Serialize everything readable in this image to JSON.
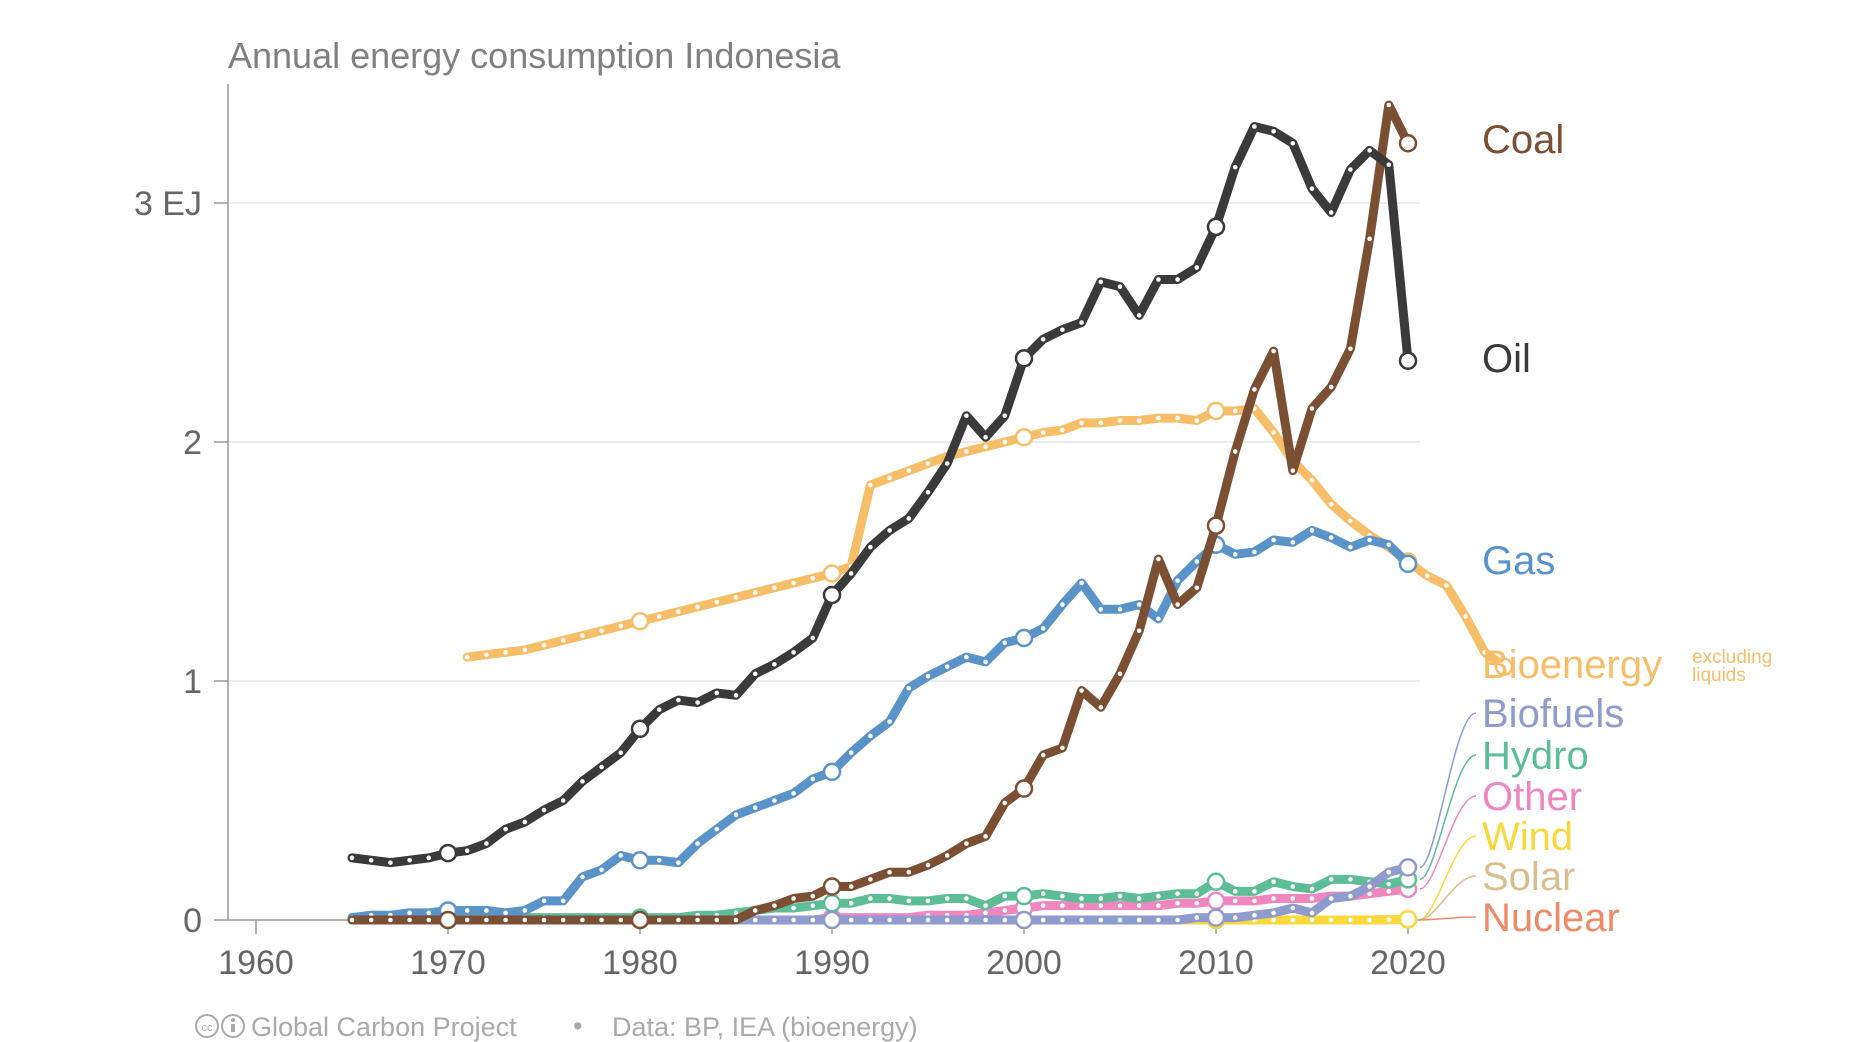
{
  "chart_data": {
    "type": "line",
    "title": "Annual energy consumption Indonesia",
    "unit": "EJ",
    "xlim": [
      1958,
      2022
    ],
    "ylim": [
      0,
      3.5
    ],
    "x_ticks": [
      "1960",
      "1970",
      "1980",
      "1990",
      "2000",
      "2010",
      "2020"
    ],
    "y_ticks": [
      {
        "value": 0,
        "label": "0"
      },
      {
        "value": 1,
        "label": "1"
      },
      {
        "value": 2,
        "label": "2"
      },
      {
        "value": 3,
        "label": "3 EJ"
      }
    ],
    "grid": true,
    "legend": "right-inline",
    "series": [
      {
        "name": "Bioenergy",
        "note": "excluding liquids",
        "color": "#F7BE6A",
        "start": 1971,
        "values": [
          1.1,
          1.11,
          1.12,
          1.13,
          1.15,
          1.17,
          1.19,
          1.21,
          1.23,
          1.25,
          1.27,
          1.29,
          1.31,
          1.33,
          1.35,
          1.37,
          1.39,
          1.41,
          1.43,
          1.45,
          1.48,
          1.82,
          1.85,
          1.88,
          1.91,
          1.94,
          1.96,
          1.98,
          2.0,
          2.02,
          2.04,
          2.05,
          2.08,
          2.08,
          2.09,
          2.09,
          2.1,
          2.1,
          2.09,
          2.13,
          2.13,
          2.14,
          2.04,
          1.92,
          1.84,
          1.74,
          1.67,
          1.61,
          1.56,
          1.5,
          1.44,
          1.4,
          1.27,
          1.12,
          1.06
        ]
      },
      {
        "name": "Oil",
        "color": "#3A3A3A",
        "start": 1965,
        "values": [
          0.26,
          0.25,
          0.24,
          0.25,
          0.26,
          0.28,
          0.29,
          0.32,
          0.38,
          0.41,
          0.46,
          0.5,
          0.58,
          0.64,
          0.7,
          0.8,
          0.88,
          0.92,
          0.91,
          0.95,
          0.94,
          1.03,
          1.07,
          1.12,
          1.18,
          1.36,
          1.45,
          1.56,
          1.63,
          1.68,
          1.79,
          1.91,
          2.11,
          2.02,
          2.11,
          2.35,
          2.43,
          2.47,
          2.5,
          2.67,
          2.65,
          2.53,
          2.68,
          2.68,
          2.73,
          2.9,
          3.15,
          3.32,
          3.3,
          3.25,
          3.06,
          2.96,
          3.14,
          3.22,
          3.16,
          2.34
        ]
      },
      {
        "name": "Coal",
        "color": "#7B4F34",
        "start": 1965,
        "values": [
          0,
          0,
          0,
          0,
          0,
          0,
          0,
          0,
          0,
          0,
          0,
          0,
          0,
          0,
          0,
          0,
          0,
          0,
          0,
          0,
          0,
          0.04,
          0.06,
          0.09,
          0.1,
          0.14,
          0.14,
          0.17,
          0.2,
          0.2,
          0.23,
          0.27,
          0.32,
          0.35,
          0.49,
          0.55,
          0.69,
          0.72,
          0.96,
          0.89,
          1.03,
          1.21,
          1.51,
          1.32,
          1.39,
          1.65,
          1.96,
          2.22,
          2.38,
          1.88,
          2.14,
          2.23,
          2.39,
          2.85,
          3.41,
          3.25
        ]
      },
      {
        "name": "Gas",
        "color": "#5A93C8",
        "start": 1965,
        "values": [
          0.01,
          0.02,
          0.02,
          0.03,
          0.03,
          0.04,
          0.04,
          0.04,
          0.03,
          0.04,
          0.08,
          0.08,
          0.18,
          0.21,
          0.27,
          0.25,
          0.25,
          0.24,
          0.32,
          0.38,
          0.44,
          0.47,
          0.5,
          0.53,
          0.59,
          0.62,
          0.7,
          0.77,
          0.83,
          0.97,
          1.02,
          1.06,
          1.1,
          1.08,
          1.16,
          1.18,
          1.22,
          1.32,
          1.41,
          1.3,
          1.3,
          1.32,
          1.26,
          1.42,
          1.5,
          1.57,
          1.53,
          1.54,
          1.59,
          1.58,
          1.63,
          1.6,
          1.56,
          1.59,
          1.57,
          1.49
        ]
      },
      {
        "name": "Biofuels",
        "color": "#8F9BCC",
        "start": 1965,
        "values": [
          0,
          0,
          0,
          0,
          0,
          0,
          0,
          0,
          0,
          0,
          0,
          0,
          0,
          0,
          0,
          0,
          0,
          0,
          0,
          0,
          0,
          0,
          0,
          0,
          0,
          0,
          0,
          0,
          0,
          0,
          0,
          0,
          0,
          0,
          0,
          0,
          0,
          0,
          0,
          0,
          0,
          0,
          0,
          0,
          0.01,
          0.01,
          0.01,
          0.02,
          0.03,
          0.05,
          0.03,
          0.09,
          0.1,
          0.14,
          0.2,
          0.22
        ]
      },
      {
        "name": "Hydro",
        "color": "#5DBD97",
        "start": 1965,
        "values": [
          0.01,
          0.01,
          0.01,
          0.01,
          0.01,
          0.01,
          0.01,
          0.01,
          0.01,
          0.01,
          0.01,
          0.01,
          0.01,
          0.01,
          0.01,
          0.01,
          0.01,
          0.01,
          0.02,
          0.02,
          0.03,
          0.04,
          0.05,
          0.05,
          0.06,
          0.07,
          0.07,
          0.09,
          0.09,
          0.08,
          0.08,
          0.09,
          0.09,
          0.06,
          0.1,
          0.1,
          0.11,
          0.1,
          0.09,
          0.09,
          0.1,
          0.09,
          0.1,
          0.11,
          0.11,
          0.16,
          0.12,
          0.12,
          0.16,
          0.14,
          0.13,
          0.17,
          0.17,
          0.16,
          0.15,
          0.17
        ]
      },
      {
        "name": "Other",
        "color": "#EE86C0",
        "start": 1965,
        "values": [
          0,
          0,
          0,
          0,
          0,
          0,
          0,
          0,
          0,
          0,
          0,
          0,
          0,
          0,
          0,
          0,
          0,
          0,
          0,
          0,
          0,
          0,
          0,
          0,
          0,
          0.01,
          0.01,
          0.01,
          0.01,
          0.01,
          0.02,
          0.02,
          0.02,
          0.03,
          0.04,
          0.05,
          0.06,
          0.06,
          0.06,
          0.06,
          0.06,
          0.06,
          0.06,
          0.07,
          0.07,
          0.08,
          0.08,
          0.08,
          0.09,
          0.09,
          0.09,
          0.1,
          0.1,
          0.11,
          0.12,
          0.13
        ]
      },
      {
        "name": "Wind",
        "color": "#F8D83A",
        "start": 1965,
        "values": [
          0,
          0,
          0,
          0,
          0,
          0,
          0,
          0,
          0,
          0,
          0,
          0,
          0,
          0,
          0,
          0,
          0,
          0,
          0,
          0,
          0,
          0,
          0,
          0,
          0,
          0,
          0,
          0,
          0,
          0,
          0,
          0,
          0,
          0,
          0,
          0,
          0,
          0,
          0,
          0,
          0,
          0,
          0,
          0,
          0,
          0,
          0,
          0,
          0,
          0,
          0,
          0,
          0,
          0,
          0.002,
          0.003
        ]
      },
      {
        "name": "Solar",
        "color": "#D9BE8F",
        "start": 1965,
        "values": [
          0,
          0,
          0,
          0,
          0,
          0,
          0,
          0,
          0,
          0,
          0,
          0,
          0,
          0,
          0,
          0,
          0,
          0,
          0,
          0,
          0,
          0,
          0,
          0,
          0,
          0,
          0,
          0,
          0,
          0,
          0,
          0,
          0,
          0,
          0,
          0,
          0,
          0,
          0,
          0,
          0,
          0,
          0,
          0,
          0,
          0,
          0,
          0,
          0,
          0,
          0,
          0,
          0,
          0,
          0.001,
          0.002
        ]
      },
      {
        "name": "Nuclear",
        "color": "#F08A66",
        "start": 1965,
        "values": []
      }
    ]
  },
  "footer": {
    "credit": "Global Carbon Project",
    "separator": "•",
    "source": "Data: BP, IEA (bioenergy)"
  }
}
